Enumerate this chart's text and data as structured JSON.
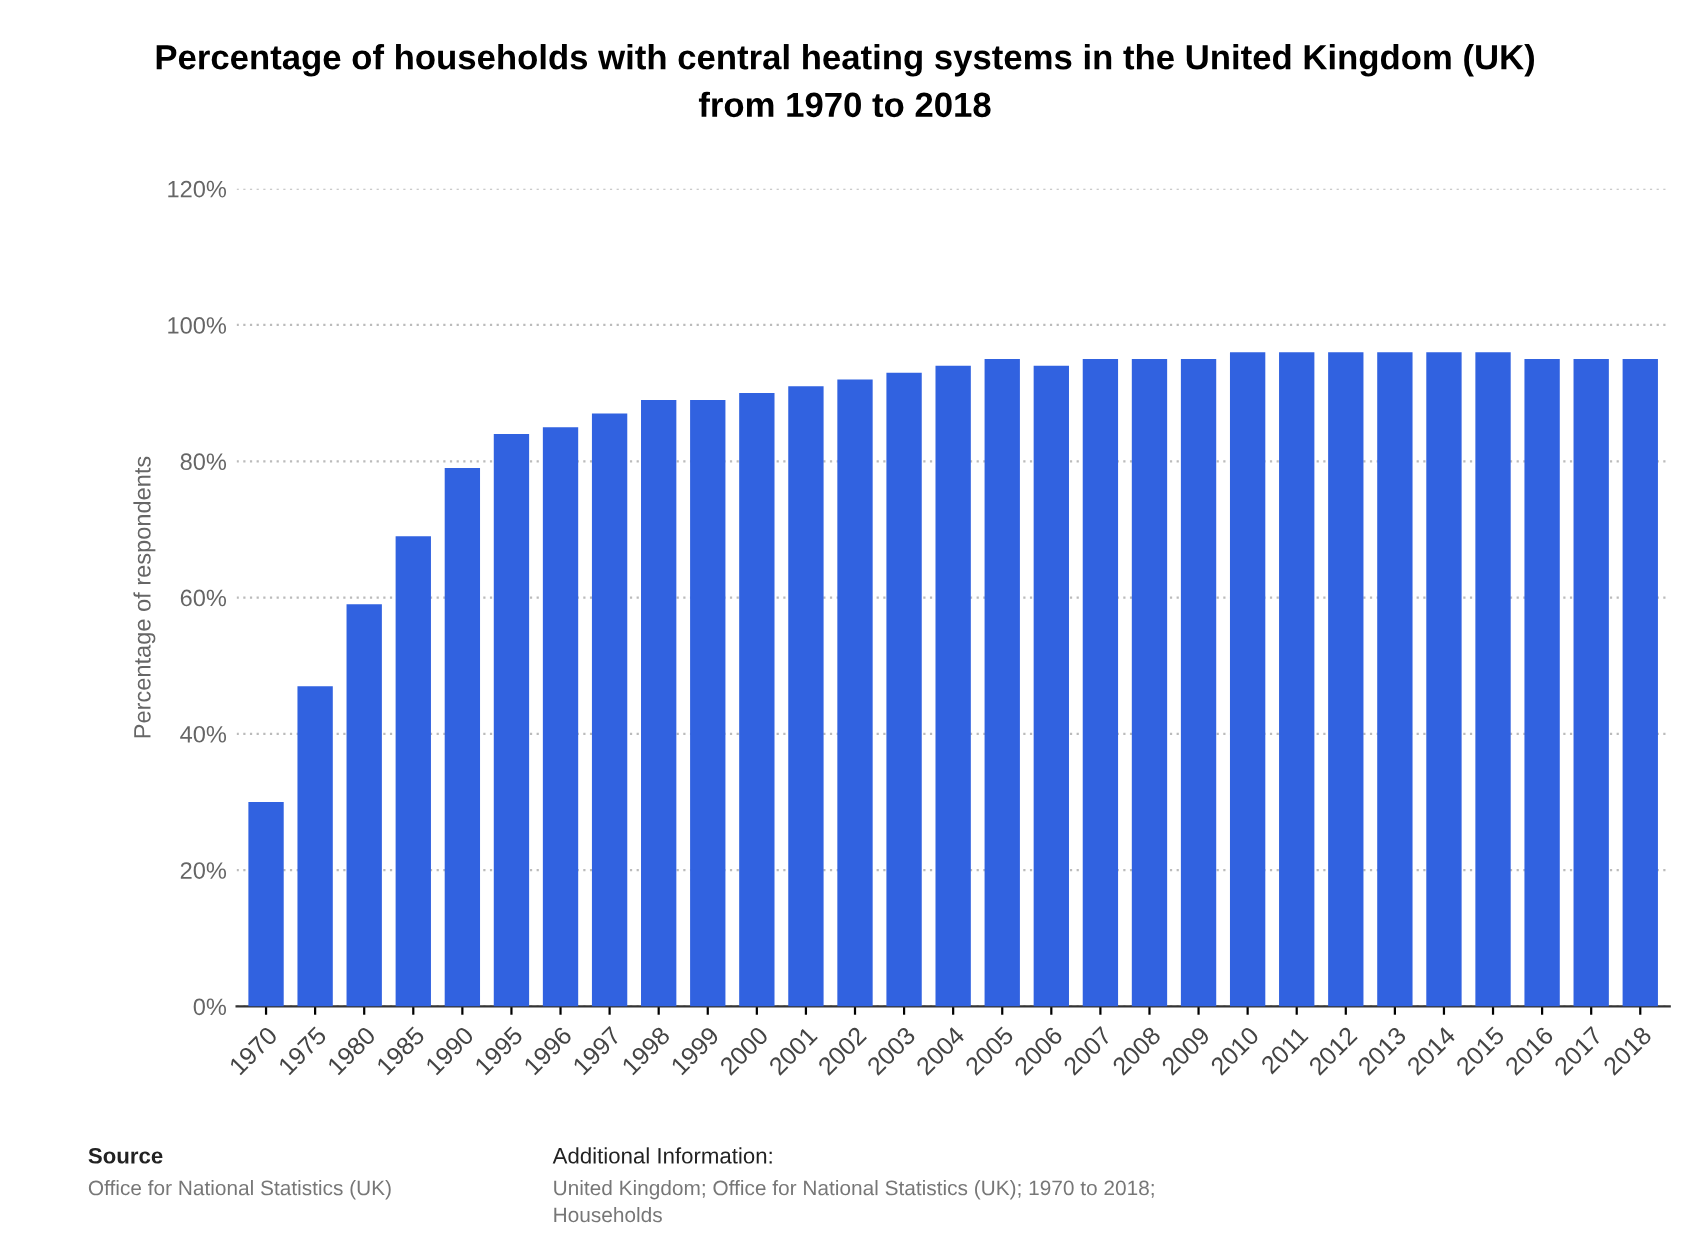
{
  "chart_data": {
    "type": "bar",
    "title": "Percentage of households with central heating systems in the United Kingdom (UK)\nfrom 1970 to 2018",
    "ylabel": "Percentage of respondents",
    "categories": [
      "1970",
      "1975",
      "1980",
      "1985",
      "1990",
      "1995",
      "1996",
      "1997",
      "1998",
      "1999",
      "2000",
      "2001",
      "2002",
      "2003",
      "2004",
      "2005",
      "2006",
      "2007",
      "2008",
      "2009",
      "2010",
      "2011",
      "2012",
      "2013",
      "2014",
      "2015",
      "2016",
      "2017",
      "2018"
    ],
    "values": [
      30,
      47,
      59,
      69,
      79,
      84,
      85,
      87,
      89,
      89,
      90,
      91,
      92,
      93,
      94,
      95,
      94,
      95,
      95,
      95,
      96,
      96,
      96,
      96,
      96,
      96,
      95,
      95,
      95
    ],
    "color": "#3162e0",
    "ylim": [
      0,
      120
    ],
    "yticks": [
      {
        "value": 0,
        "label": "0%"
      },
      {
        "value": 20,
        "label": "20%"
      },
      {
        "value": 40,
        "label": "40%"
      },
      {
        "value": 60,
        "label": "60%"
      },
      {
        "value": 80,
        "label": "80%"
      },
      {
        "value": 100,
        "label": "100%"
      },
      {
        "value": 120,
        "label": "120%"
      }
    ],
    "grid": "y",
    "legend": false,
    "annotations": [
      "Source",
      "Office for National Statistics (UK)",
      "Additional Information:",
      "United Kingdom; Office for National Statistics (UK); 1970 to 2018;\nHouseholds"
    ]
  }
}
